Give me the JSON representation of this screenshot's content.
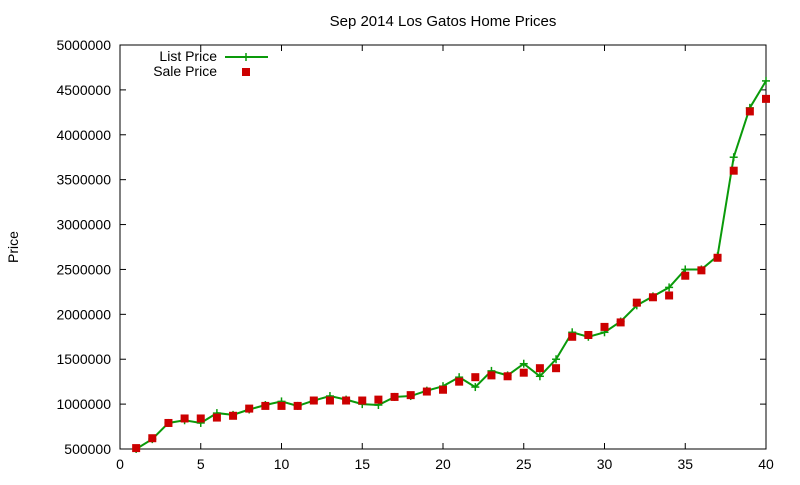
{
  "chart_data": {
    "type": "line",
    "title": "Sep 2014 Los Gatos Home Prices",
    "xlabel": "",
    "ylabel": "Price",
    "xlim": [
      0,
      40
    ],
    "ylim": [
      500000,
      5000000
    ],
    "x_ticks": [
      0,
      5,
      10,
      15,
      20,
      25,
      30,
      35,
      40
    ],
    "y_ticks": [
      500000,
      1000000,
      1500000,
      2000000,
      2500000,
      3000000,
      3500000,
      4000000,
      4500000,
      5000000
    ],
    "x_tick_labels": [
      "0",
      "5",
      "10",
      "15",
      "20",
      "25",
      "30",
      "35",
      "40"
    ],
    "y_tick_labels": [
      "500000",
      "1000000",
      "1500000",
      "2000000",
      "2500000",
      "3000000",
      "3500000",
      "4000000",
      "4500000",
      "5000000"
    ],
    "grid": false,
    "legend_position": "top-left",
    "x": [
      1,
      2,
      3,
      4,
      5,
      6,
      7,
      8,
      9,
      10,
      11,
      12,
      13,
      14,
      15,
      16,
      17,
      18,
      19,
      20,
      21,
      22,
      23,
      24,
      25,
      26,
      27,
      28,
      29,
      30,
      31,
      32,
      33,
      34,
      35,
      36,
      37,
      38,
      39,
      40
    ],
    "series": [
      {
        "name": "List Price",
        "style": "line-plus",
        "color": "#0a9a0a",
        "values": [
          500000,
          610000,
          790000,
          820000,
          790000,
          900000,
          880000,
          940000,
          990000,
          1030000,
          980000,
          1040000,
          1090000,
          1050000,
          1000000,
          990000,
          1080000,
          1090000,
          1150000,
          1200000,
          1300000,
          1190000,
          1370000,
          1320000,
          1450000,
          1310000,
          1500000,
          1800000,
          1750000,
          1800000,
          1920000,
          2100000,
          2200000,
          2300000,
          2500000,
          2500000,
          2650000,
          3750000,
          4300000,
          4600000
        ]
      },
      {
        "name": "Sale Price",
        "style": "points-square",
        "color": "#cc0000",
        "values": [
          510000,
          620000,
          790000,
          840000,
          840000,
          850000,
          870000,
          950000,
          980000,
          980000,
          980000,
          1040000,
          1040000,
          1040000,
          1040000,
          1050000,
          1080000,
          1100000,
          1140000,
          1160000,
          1250000,
          1300000,
          1320000,
          1310000,
          1350000,
          1400000,
          1400000,
          1750000,
          1770000,
          1860000,
          1910000,
          2130000,
          2190000,
          2210000,
          2430000,
          2490000,
          2630000,
          3600000,
          4260000,
          4400000
        ]
      }
    ]
  }
}
